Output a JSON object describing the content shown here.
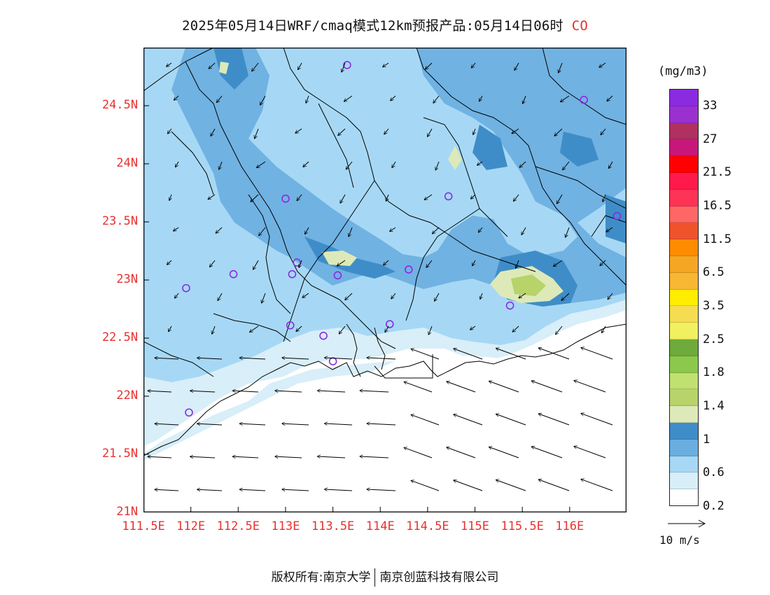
{
  "title": {
    "text": "2025年05月14日WRF/cmaq模式12km预报产品:05月14日06时",
    "species": "CO"
  },
  "axes": {
    "lat_ticks": [
      "24.5N",
      "24N",
      "23.5N",
      "23N",
      "22.5N",
      "22N",
      "21.5N",
      "21N"
    ],
    "lat_values": [
      24.5,
      24,
      23.5,
      23,
      22.5,
      22,
      21.5,
      21
    ],
    "lon_ticks": [
      "111.5E",
      "112E",
      "112.5E",
      "113E",
      "113.5E",
      "114E",
      "114.5E",
      "115E",
      "115.5E",
      "116E"
    ],
    "lon_values": [
      111.5,
      112,
      112.5,
      113,
      113.5,
      114,
      114.5,
      115,
      115.5,
      116
    ],
    "lon_range": [
      111.5,
      116.6
    ],
    "lat_range": [
      21.0,
      25.0
    ]
  },
  "legend": {
    "unit": "(mg/m3)",
    "colors": [
      "#8a2be2",
      "#9b30d0",
      "#b03060",
      "#c8177a",
      "#ff0000",
      "#ff1a4b",
      "#ff3355",
      "#ff6666",
      "#f0522a",
      "#ff8c00",
      "#f5a623",
      "#f7b733",
      "#ffee00",
      "#f5dc50",
      "#f0f060",
      "#6eaa3c",
      "#8cc84b",
      "#c0e070",
      "#b7d36a",
      "#dde9b8",
      "#3f8dc8",
      "#6aaee0",
      "#a6d8f5",
      "#d8eef9",
      "#ffffff"
    ],
    "labels": [
      "33",
      "27",
      "21.5",
      "16.5",
      "11.5",
      "6.5",
      "3.5",
      "2.5",
      "1.8",
      "1.4",
      "1",
      "0.6",
      "0.2"
    ]
  },
  "wind_reference": {
    "label": "10 m/s"
  },
  "stations": [
    {
      "lon": 113.65,
      "lat": 24.85
    },
    {
      "lon": 116.15,
      "lat": 24.55
    },
    {
      "lon": 113.0,
      "lat": 23.7
    },
    {
      "lon": 114.72,
      "lat": 23.72
    },
    {
      "lon": 116.5,
      "lat": 23.55
    },
    {
      "lon": 113.12,
      "lat": 23.15
    },
    {
      "lon": 112.45,
      "lat": 23.05
    },
    {
      "lon": 113.07,
      "lat": 23.05
    },
    {
      "lon": 113.55,
      "lat": 23.04
    },
    {
      "lon": 114.3,
      "lat": 23.09
    },
    {
      "lon": 111.95,
      "lat": 22.93
    },
    {
      "lon": 115.37,
      "lat": 22.78
    },
    {
      "lon": 113.05,
      "lat": 22.61
    },
    {
      "lon": 114.1,
      "lat": 22.62
    },
    {
      "lon": 113.4,
      "lat": 22.52
    },
    {
      "lon": 113.5,
      "lat": 22.3
    },
    {
      "lon": 111.98,
      "lat": 21.86
    }
  ],
  "footer": {
    "left": "版权所有:南京大学",
    "right": "南京创蓝科技有限公司"
  },
  "colors": {
    "axis_label": "#e8312f",
    "boundary": "#000000",
    "station": "#8a2be2"
  }
}
